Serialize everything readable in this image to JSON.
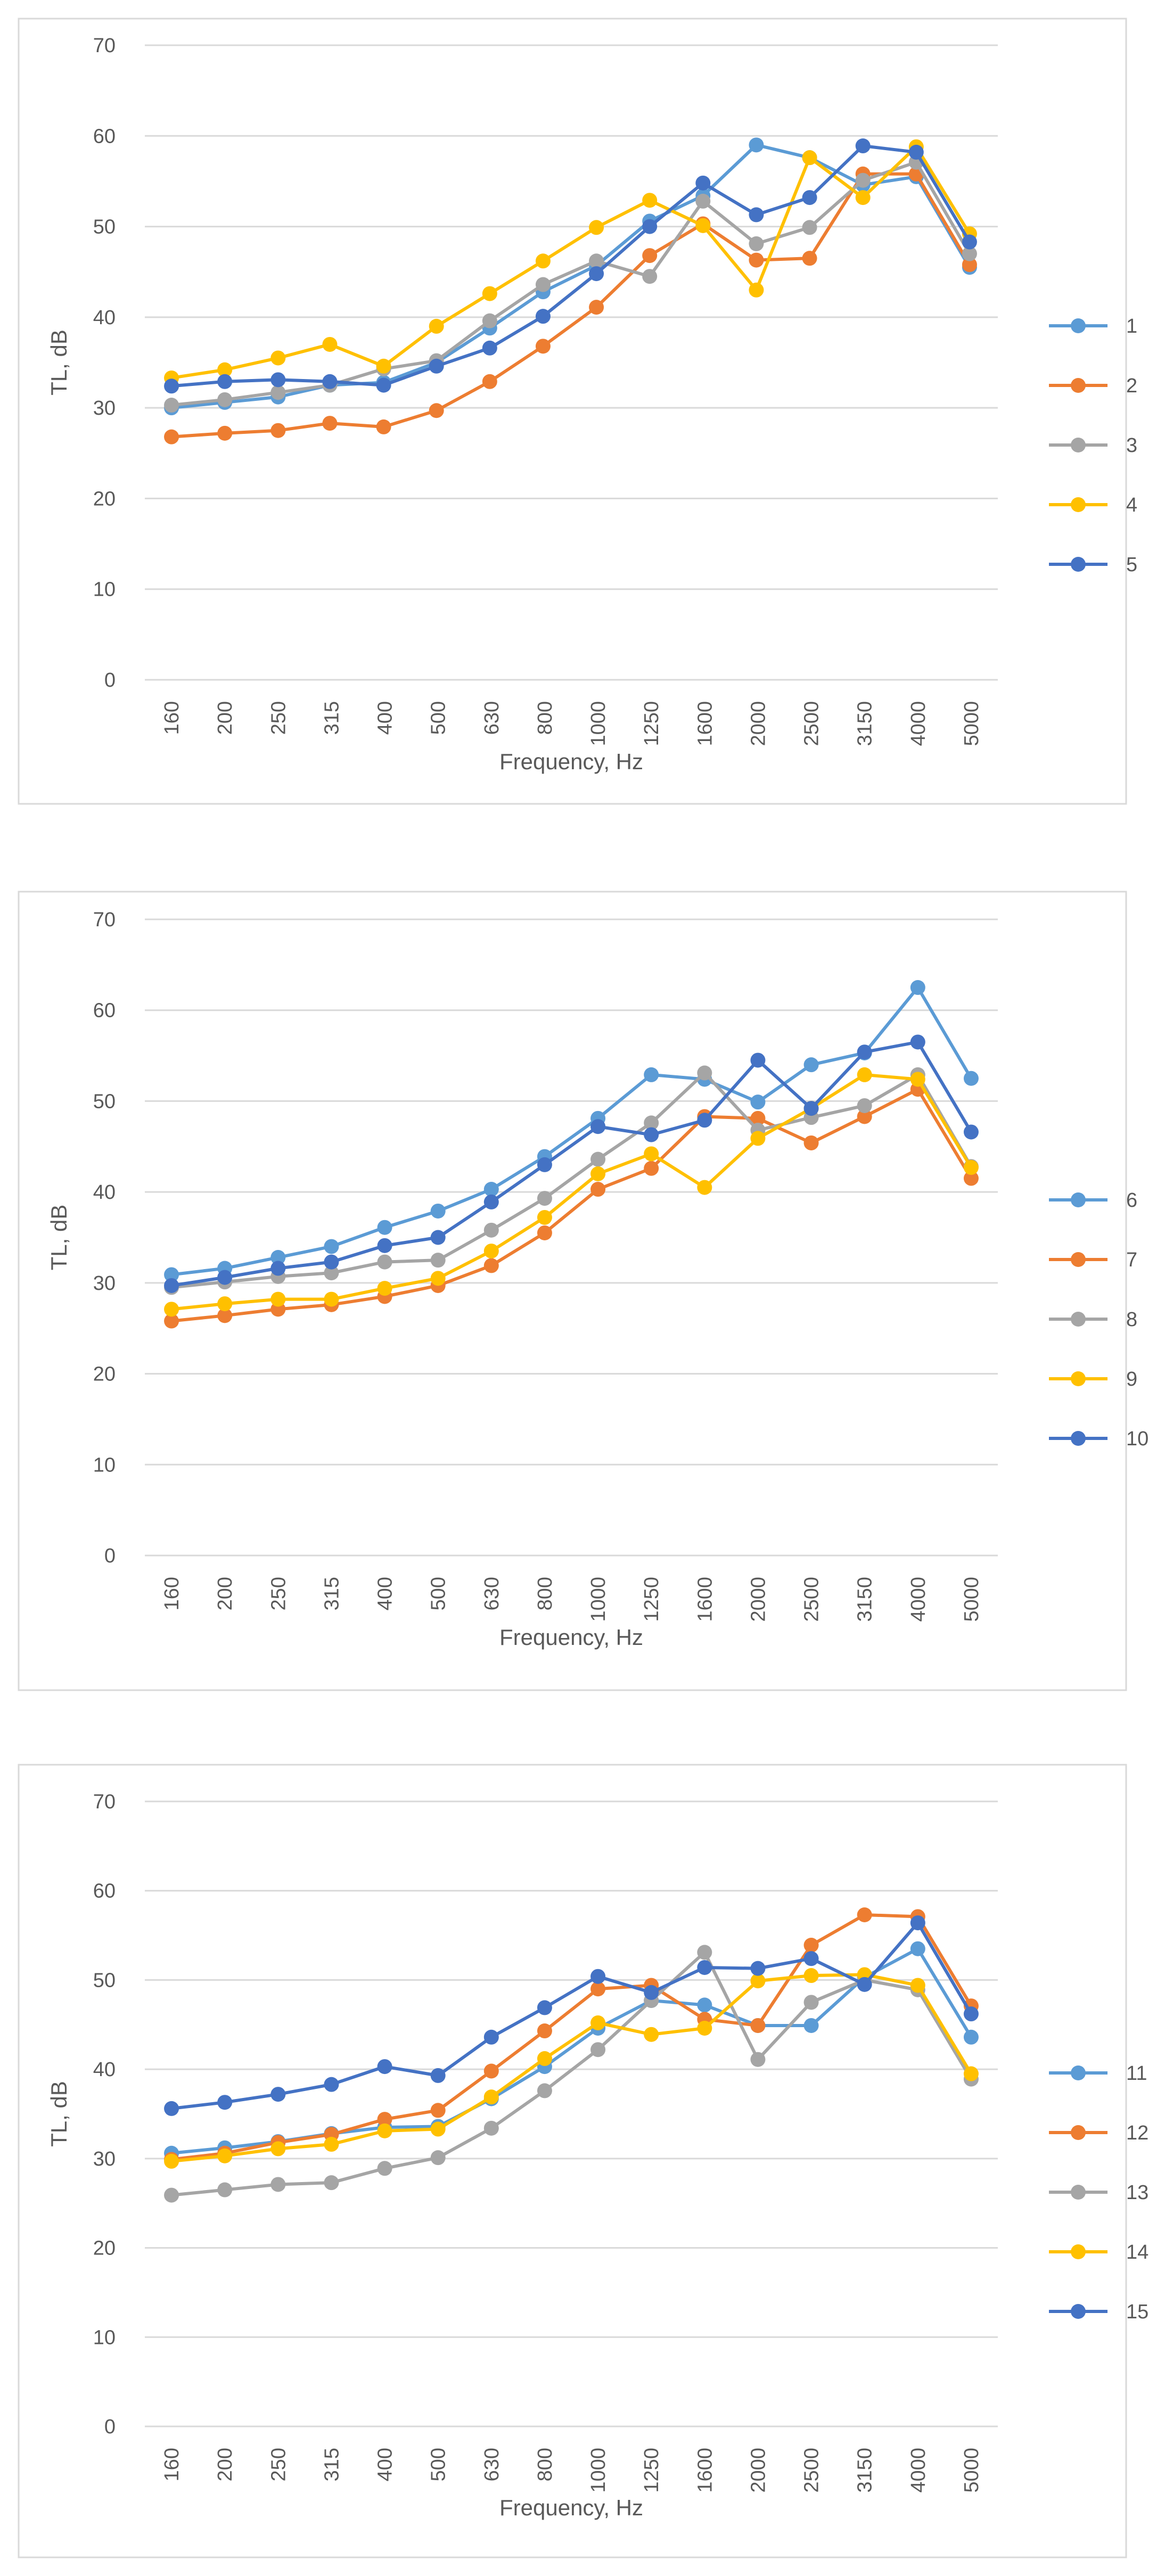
{
  "chart_data": [
    {
      "type": "line",
      "title": "",
      "xlabel": "Frequency, Hz",
      "ylabel": "TL, dB",
      "ylim": [
        0,
        70
      ],
      "yticks": [
        0,
        10,
        20,
        30,
        40,
        50,
        60,
        70
      ],
      "grid": true,
      "legend": "right",
      "categories": [
        "160",
        "200",
        "250",
        "315",
        "400",
        "500",
        "630",
        "800",
        "1000",
        "1250",
        "1600",
        "2000",
        "2500",
        "3150",
        "4000",
        "5000"
      ],
      "series": [
        {
          "name": "1",
          "color": "#5B9BD5",
          "values": [
            30.0,
            30.6,
            31.2,
            32.5,
            32.8,
            35.0,
            38.8,
            42.8,
            45.7,
            50.6,
            53.4,
            59.0,
            57.6,
            54.6,
            55.5,
            45.5
          ]
        },
        {
          "name": "2",
          "color": "#ED7D31",
          "values": [
            26.8,
            27.2,
            27.5,
            28.3,
            27.9,
            29.7,
            32.9,
            36.8,
            41.1,
            46.8,
            50.3,
            46.3,
            46.5,
            55.8,
            55.8,
            45.8
          ]
        },
        {
          "name": "3",
          "color": "#A5A5A5",
          "values": [
            30.3,
            30.9,
            31.7,
            32.5,
            34.3,
            35.2,
            39.6,
            43.6,
            46.2,
            44.5,
            52.8,
            48.1,
            49.9,
            55.1,
            57.1,
            47.0
          ]
        },
        {
          "name": "4",
          "color": "#FFC000",
          "values": [
            33.3,
            34.2,
            35.5,
            37.0,
            34.6,
            39.0,
            42.6,
            46.2,
            49.9,
            52.9,
            50.1,
            43.0,
            57.6,
            53.2,
            58.8,
            49.2
          ]
        },
        {
          "name": "5",
          "color": "#4472C4",
          "values": [
            32.4,
            32.9,
            33.1,
            32.9,
            32.5,
            34.6,
            36.6,
            40.1,
            44.8,
            50.0,
            54.8,
            51.3,
            53.2,
            58.9,
            58.2,
            48.3
          ]
        }
      ]
    },
    {
      "type": "line",
      "title": "",
      "xlabel": "Frequency, Hz",
      "ylabel": "TL, dB",
      "ylim": [
        0,
        70
      ],
      "yticks": [
        0,
        10,
        20,
        30,
        40,
        50,
        60,
        70
      ],
      "grid": true,
      "legend": "right",
      "categories": [
        "160",
        "200",
        "250",
        "315",
        "400",
        "500",
        "630",
        "800",
        "1000",
        "1250",
        "1600",
        "2000",
        "2500",
        "3150",
        "4000",
        "5000"
      ],
      "series": [
        {
          "name": "6",
          "color": "#5B9BD5",
          "values": [
            30.9,
            31.6,
            32.8,
            34.0,
            36.1,
            37.9,
            40.3,
            43.9,
            48.1,
            52.9,
            52.4,
            49.9,
            54.0,
            55.3,
            62.5,
            52.5
          ]
        },
        {
          "name": "7",
          "color": "#ED7D31",
          "values": [
            25.8,
            26.4,
            27.1,
            27.6,
            28.5,
            29.7,
            31.9,
            35.5,
            40.3,
            42.6,
            48.3,
            48.1,
            45.4,
            48.3,
            51.3,
            41.5
          ]
        },
        {
          "name": "8",
          "color": "#A5A5A5",
          "values": [
            29.5,
            30.1,
            30.7,
            31.1,
            32.3,
            32.5,
            35.8,
            39.3,
            43.6,
            47.6,
            53.1,
            46.8,
            48.2,
            49.5,
            52.9,
            42.8
          ]
        },
        {
          "name": "9",
          "color": "#FFC000",
          "values": [
            27.1,
            27.7,
            28.2,
            28.2,
            29.4,
            30.5,
            33.5,
            37.2,
            42.0,
            44.2,
            40.5,
            45.9,
            49.2,
            52.9,
            52.4,
            42.7
          ]
        },
        {
          "name": "10",
          "color": "#4472C4",
          "values": [
            29.7,
            30.6,
            31.6,
            32.3,
            34.1,
            35.0,
            38.9,
            43.0,
            47.2,
            46.3,
            47.9,
            54.5,
            49.2,
            55.4,
            56.5,
            46.6
          ]
        }
      ]
    },
    {
      "type": "line",
      "title": "",
      "xlabel": "Frequency, Hz",
      "ylabel": "TL, dB",
      "ylim": [
        0,
        70
      ],
      "yticks": [
        0,
        10,
        20,
        30,
        40,
        50,
        60,
        70
      ],
      "grid": true,
      "legend": "right",
      "categories": [
        "160",
        "200",
        "250",
        "315",
        "400",
        "500",
        "630",
        "800",
        "1000",
        "1250",
        "1600",
        "2000",
        "2500",
        "3150",
        "4000",
        "5000"
      ],
      "series": [
        {
          "name": "11",
          "color": "#5B9BD5",
          "values": [
            30.6,
            31.2,
            31.9,
            32.8,
            33.5,
            33.6,
            36.7,
            40.3,
            44.6,
            47.7,
            47.2,
            44.9,
            44.9,
            50.3,
            53.5,
            43.6
          ]
        },
        {
          "name": "12",
          "color": "#ED7D31",
          "values": [
            29.9,
            30.6,
            31.8,
            32.7,
            34.4,
            35.4,
            39.8,
            44.3,
            49.0,
            49.4,
            45.6,
            44.9,
            53.9,
            57.3,
            57.1,
            47.1
          ]
        },
        {
          "name": "13",
          "color": "#A5A5A5",
          "values": [
            25.9,
            26.5,
            27.1,
            27.3,
            28.9,
            30.1,
            33.4,
            37.6,
            42.2,
            47.7,
            53.1,
            41.1,
            47.5,
            50.0,
            48.9,
            38.9
          ]
        },
        {
          "name": "14",
          "color": "#FFC000",
          "values": [
            29.7,
            30.3,
            31.1,
            31.6,
            33.1,
            33.3,
            36.9,
            41.2,
            45.2,
            43.9,
            44.6,
            49.9,
            50.5,
            50.6,
            49.4,
            39.5
          ]
        },
        {
          "name": "15",
          "color": "#4472C4",
          "values": [
            35.6,
            36.3,
            37.2,
            38.3,
            40.3,
            39.3,
            43.6,
            46.9,
            50.4,
            48.6,
            51.4,
            51.3,
            52.4,
            49.5,
            56.4,
            46.2
          ]
        }
      ]
    }
  ]
}
